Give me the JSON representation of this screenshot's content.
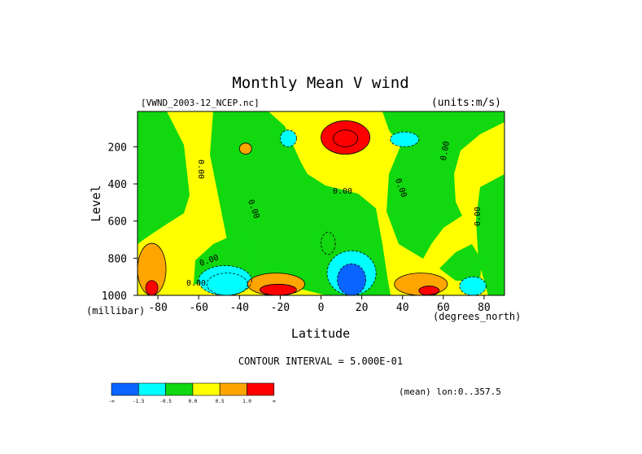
{
  "chart_data": {
    "type": "heatmap",
    "title": "Monthly Mean V wind",
    "dataset": "[VWND_2003-12_NCEP.nc]",
    "units": "(units:m/s)",
    "xlabel": "Latitude",
    "ylabel": "Level",
    "x_unit": "(degrees_north)",
    "y_unit": "(millibar)",
    "xlim": [
      -90,
      90
    ],
    "ylim": [
      1000,
      10
    ],
    "x_ticks": [
      -80,
      -60,
      -40,
      -20,
      0,
      20,
      40,
      60,
      80
    ],
    "y_ticks": [
      200,
      400,
      600,
      800,
      1000
    ],
    "contour_interval": "CONTOUR INTERVAL = 5.000E-01",
    "mean_note": "(mean) lon:0..357.5",
    "zero_labels": [
      "0.00",
      "0.00",
      "0.00",
      "0.00",
      "0.00",
      "0.00",
      "0.00",
      "0.00"
    ],
    "colorbar": {
      "colors": [
        "#0a64ff",
        "#00ffff",
        "#11d80f",
        "#ffff00",
        "#ffa500",
        "#ff0000"
      ],
      "labels": [
        "-∞",
        "-1.5",
        "-0.5",
        "0.0",
        "0.5",
        "1.0",
        "∞"
      ]
    },
    "regions": [
      {
        "value": -2.0,
        "lat": [
          8,
          22
        ],
        "lev": [
          830,
          1000
        ]
      },
      {
        "value": -1.0,
        "lat": [
          3,
          27
        ],
        "lev": [
          760,
          1000
        ]
      },
      {
        "value": -0.5,
        "lat": [
          0,
          7
        ],
        "lev": [
          660,
          780
        ]
      },
      {
        "value": -1.5,
        "lat": [
          -56,
          -36
        ],
        "lev": [
          880,
          1000
        ]
      },
      {
        "value": -0.8,
        "lat": [
          -60,
          -34
        ],
        "lev": [
          840,
          1000
        ]
      },
      {
        "value": -0.8,
        "lat": [
          68,
          81
        ],
        "lev": [
          900,
          1000
        ]
      },
      {
        "value": -0.6,
        "lat": [
          -20,
          -12
        ],
        "lev": [
          110,
          200
        ]
      },
      {
        "value": -0.6,
        "lat": [
          34,
          48
        ],
        "lev": [
          120,
          200
        ]
      },
      {
        "value": 2.0,
        "lat": [
          6,
          18
        ],
        "lev": [
          110,
          200
        ]
      },
      {
        "value": 1.0,
        "lat": [
          0,
          24
        ],
        "lev": [
          60,
          240
        ]
      },
      {
        "value": 0.8,
        "lat": [
          -40,
          -34
        ],
        "lev": [
          180,
          240
        ]
      },
      {
        "value": 1.5,
        "lat": [
          -30,
          -12
        ],
        "lev": [
          940,
          1000
        ]
      },
      {
        "value": 0.8,
        "lat": [
          -36,
          -8
        ],
        "lev": [
          880,
          1000
        ]
      },
      {
        "value": 1.5,
        "lat": [
          48,
          58
        ],
        "lev": [
          950,
          1000
        ]
      },
      {
        "value": 0.8,
        "lat": [
          36,
          62
        ],
        "lev": [
          880,
          1000
        ]
      },
      {
        "value": 1.5,
        "lat": [
          -86,
          -80
        ],
        "lev": [
          920,
          1000
        ]
      },
      {
        "value": 0.8,
        "lat": [
          -90,
          -76
        ],
        "lev": [
          720,
          1000
        ]
      }
    ]
  }
}
